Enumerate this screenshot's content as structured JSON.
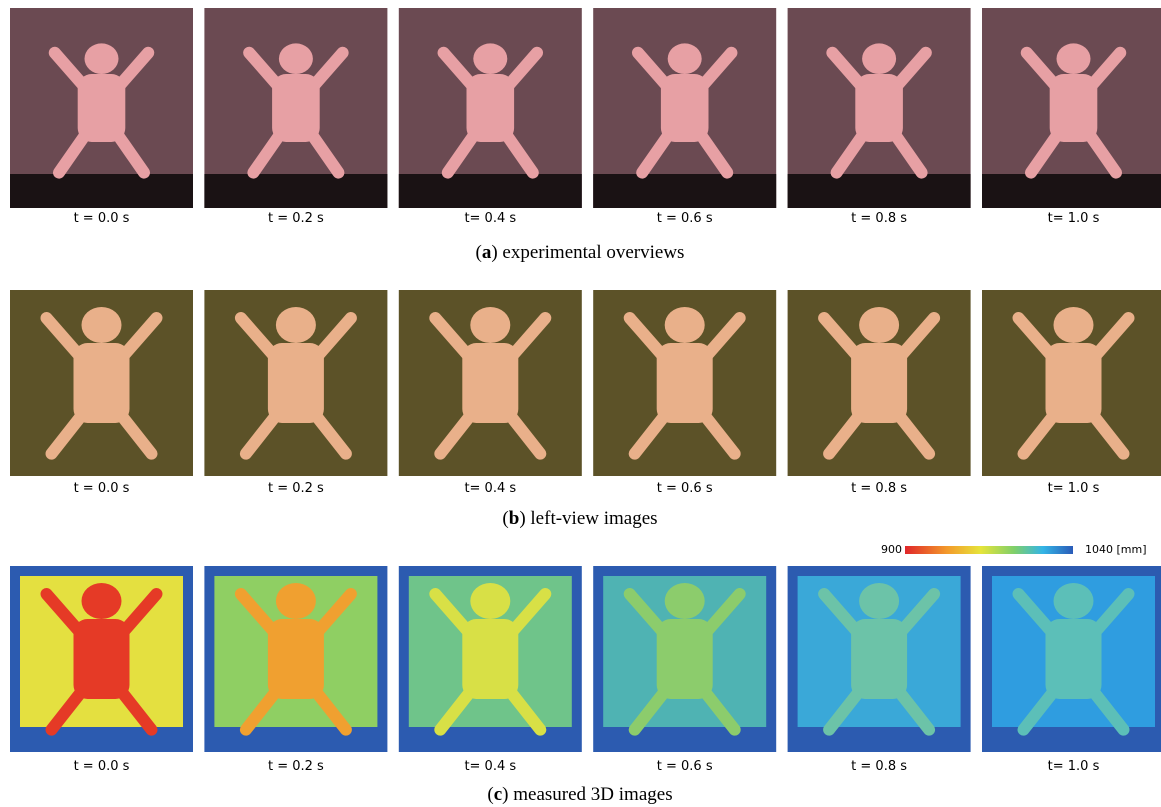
{
  "rows": [
    {
      "caption": [
        "(",
        "a",
        ") experimental overviews"
      ],
      "times": [
        "t = 0.0 s",
        "t = 0.2 s",
        "t= 0.4 s",
        "t = 0.6 s",
        "t = 0.8 s",
        "t= 1.0 s"
      ]
    },
    {
      "caption": [
        "(",
        "b",
        ") left-view images"
      ],
      "times": [
        "t = 0.0 s",
        "t = 0.2 s",
        "t= 0.4 s",
        "t = 0.6 s",
        "t = 0.8 s",
        "t= 1.0 s"
      ]
    },
    {
      "caption": [
        "(",
        "c",
        ") measured 3D images"
      ],
      "times": [
        "t = 0.0 s",
        "t = 0.2 s",
        "t= 0.4 s",
        "t = 0.6 s",
        "t = 0.8 s",
        "t= 1.0 s"
      ]
    }
  ],
  "colorbar": {
    "min_label": "900",
    "max_label": "1040 [mm]"
  }
}
